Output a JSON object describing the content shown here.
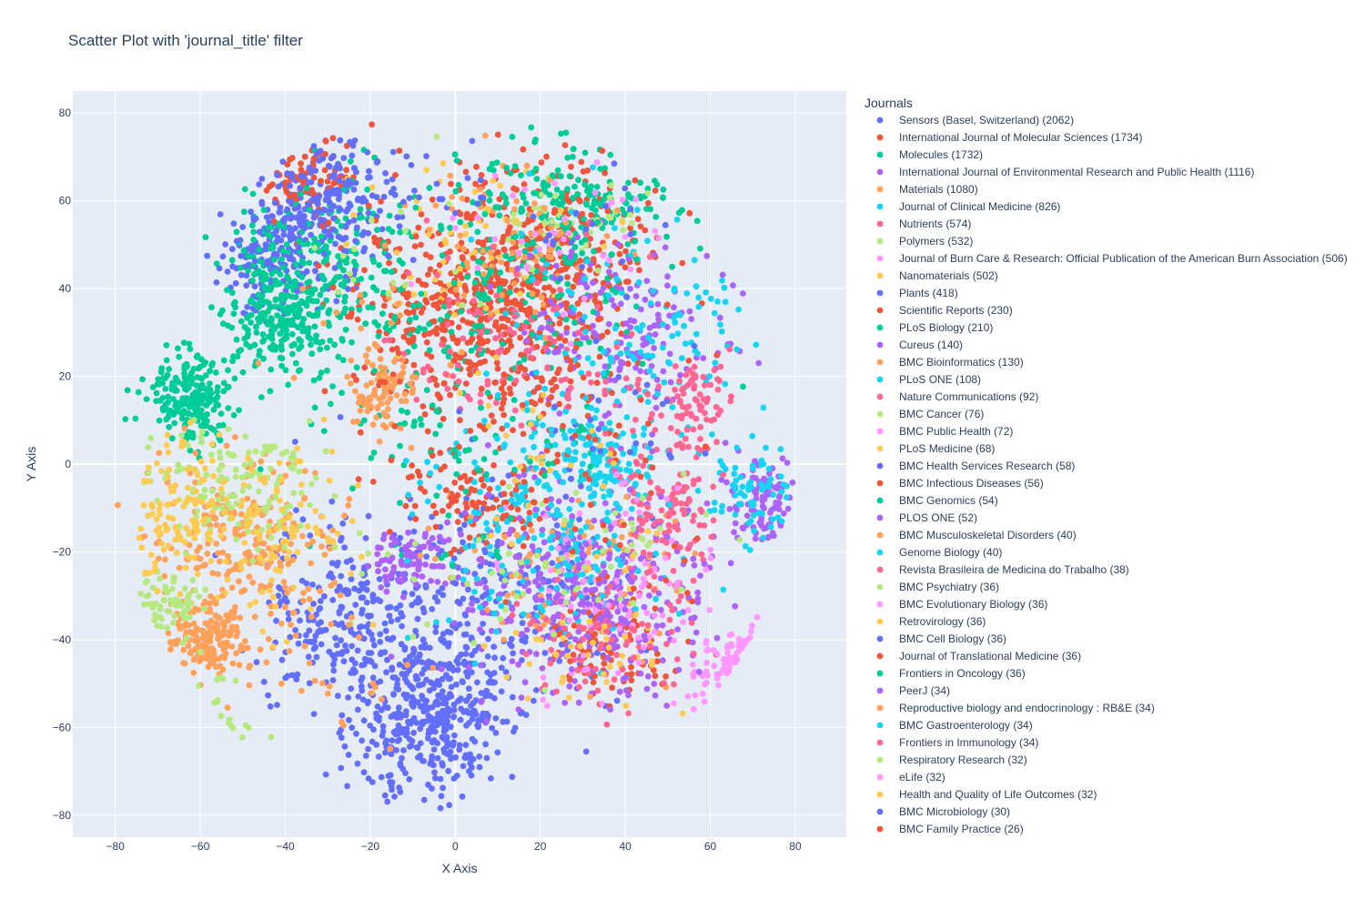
{
  "chart_data": {
    "type": "scatter",
    "title": "Scatter Plot with 'journal_title' filter",
    "xlabel": "X Axis",
    "ylabel": "Y Axis",
    "xlim": [
      -90,
      92
    ],
    "ylim": [
      -85,
      85
    ],
    "xticks": [
      -80,
      -60,
      -40,
      -20,
      0,
      20,
      40,
      60,
      80
    ],
    "yticks": [
      -80,
      -60,
      -40,
      -20,
      0,
      20,
      40,
      60,
      80
    ],
    "grid": true,
    "legend_title": "Journals",
    "legend_placement": "right",
    "series": [
      {
        "name": "Sensors (Basel, Switzerland) (2062)",
        "color": "#636efa",
        "clusters": [
          {
            "cx": -5,
            "cy": -55,
            "sx": 9,
            "sy": 9,
            "w": 4
          },
          {
            "cx": -25,
            "cy": -35,
            "sx": 10,
            "sy": 12,
            "w": 3
          },
          {
            "cx": -35,
            "cy": 55,
            "sx": 7,
            "sy": 8,
            "w": 2
          },
          {
            "cx": -45,
            "cy": 45,
            "sx": 5,
            "sy": 5,
            "w": 1
          },
          {
            "cx": 10,
            "cy": -30,
            "sx": 15,
            "sy": 12,
            "w": 2
          }
        ]
      },
      {
        "name": "International Journal of Molecular Sciences (1734)",
        "color": "#ef553b",
        "clusters": [
          {
            "cx": 5,
            "cy": 35,
            "sx": 14,
            "sy": 12,
            "w": 4
          },
          {
            "cx": 25,
            "cy": 50,
            "sx": 12,
            "sy": 10,
            "w": 2
          },
          {
            "cx": -35,
            "cy": 65,
            "sx": 5,
            "sy": 5,
            "w": 1
          },
          {
            "cx": 5,
            "cy": -10,
            "sx": 8,
            "sy": 5,
            "w": 1
          },
          {
            "cx": 35,
            "cy": -40,
            "sx": 8,
            "sy": 6,
            "w": 1
          }
        ]
      },
      {
        "name": "Molecules (1732)",
        "color": "#00cc96",
        "clusters": [
          {
            "cx": -62,
            "cy": 15,
            "sx": 5,
            "sy": 5,
            "w": 3
          },
          {
            "cx": -42,
            "cy": 35,
            "sx": 6,
            "sy": 6,
            "w": 3
          },
          {
            "cx": -30,
            "cy": 45,
            "sx": 12,
            "sy": 12,
            "w": 3
          },
          {
            "cx": 30,
            "cy": 60,
            "sx": 10,
            "sy": 6,
            "w": 2
          },
          {
            "cx": 0,
            "cy": 20,
            "sx": 20,
            "sy": 15,
            "w": 2
          }
        ]
      },
      {
        "name": "International Journal of Environmental Research and Public Health (1116)",
        "color": "#ab63fa",
        "clusters": [
          {
            "cx": 30,
            "cy": -30,
            "sx": 15,
            "sy": 12,
            "w": 3
          },
          {
            "cx": 72,
            "cy": -8,
            "sx": 4,
            "sy": 6,
            "w": 1
          },
          {
            "cx": -10,
            "cy": -22,
            "sx": 5,
            "sy": 4,
            "w": 1
          },
          {
            "cx": 40,
            "cy": 30,
            "sx": 12,
            "sy": 10,
            "w": 2
          }
        ]
      },
      {
        "name": "Materials (1080)",
        "color": "#ffa15a",
        "clusters": [
          {
            "cx": -58,
            "cy": -40,
            "sx": 4,
            "sy": 5,
            "w": 2
          },
          {
            "cx": -50,
            "cy": -20,
            "sx": 10,
            "sy": 12,
            "w": 3
          },
          {
            "cx": -17,
            "cy": 17,
            "sx": 4,
            "sy": 4,
            "w": 1
          },
          {
            "cx": 30,
            "cy": -25,
            "sx": 15,
            "sy": 10,
            "w": 1
          }
        ]
      },
      {
        "name": "Journal of Clinical Medicine (826)",
        "color": "#19d3f3",
        "clusters": [
          {
            "cx": 25,
            "cy": -10,
            "sx": 15,
            "sy": 15,
            "w": 3
          },
          {
            "cx": 35,
            "cy": 0,
            "sx": 5,
            "sy": 4,
            "w": 1
          },
          {
            "cx": 50,
            "cy": 30,
            "sx": 10,
            "sy": 10,
            "w": 1
          },
          {
            "cx": 70,
            "cy": -5,
            "sx": 5,
            "sy": 5,
            "w": 1
          }
        ]
      },
      {
        "name": "Nutrients (574)",
        "color": "#ff6692",
        "clusters": [
          {
            "cx": 50,
            "cy": -12,
            "sx": 6,
            "sy": 8,
            "w": 2
          },
          {
            "cx": 57,
            "cy": 15,
            "sx": 4,
            "sy": 5,
            "w": 1
          },
          {
            "cx": 30,
            "cy": -40,
            "sx": 10,
            "sy": 8,
            "w": 1
          },
          {
            "cx": 5,
            "cy": 25,
            "sx": 10,
            "sy": 8,
            "w": 1
          }
        ]
      },
      {
        "name": "Polymers (532)",
        "color": "#b6e880",
        "clusters": [
          {
            "cx": -52,
            "cy": -5,
            "sx": 10,
            "sy": 8,
            "w": 2
          },
          {
            "cx": -68,
            "cy": -32,
            "sx": 4,
            "sy": 4,
            "w": 1
          },
          {
            "cx": -55,
            "cy": -58,
            "sx": 4,
            "sy": 5,
            "w": 1
          },
          {
            "cx": 25,
            "cy": 55,
            "sx": 8,
            "sy": 5,
            "w": 1
          }
        ]
      },
      {
        "name": "Journal of Burn Care & Research: Official Publication of the American Burn Association (506)",
        "color": "#ff97ff",
        "clusters": [
          {
            "cx": 68,
            "cy": -47,
            "sx": 5,
            "sy": 5,
            "w": 4
          },
          {
            "cx": 30,
            "cy": -35,
            "sx": 12,
            "sy": 10,
            "w": 1
          }
        ]
      },
      {
        "name": "Nanomaterials (502)",
        "color": "#fecb52",
        "clusters": [
          {
            "cx": -65,
            "cy": -10,
            "sx": 6,
            "sy": 8,
            "w": 2
          },
          {
            "cx": -42,
            "cy": -15,
            "sx": 8,
            "sy": 10,
            "w": 2
          },
          {
            "cx": 0,
            "cy": 50,
            "sx": 15,
            "sy": 10,
            "w": 1
          }
        ]
      },
      {
        "name": "Plants (418)",
        "color": "#636efa",
        "clusters": [
          {
            "cx": -30,
            "cy": 60,
            "sx": 8,
            "sy": 8,
            "w": 2
          },
          {
            "cx": -10,
            "cy": -65,
            "sx": 8,
            "sy": 6,
            "w": 1
          }
        ]
      },
      {
        "name": "Scientific Reports (230)",
        "color": "#ef553b",
        "clusters": [
          {
            "cx": 10,
            "cy": 30,
            "sx": 20,
            "sy": 20,
            "w": 1
          }
        ]
      },
      {
        "name": "PLoS Biology (210)",
        "color": "#00cc96",
        "clusters": [
          {
            "cx": 20,
            "cy": 45,
            "sx": 15,
            "sy": 12,
            "w": 1
          }
        ]
      },
      {
        "name": "Cureus (140)",
        "color": "#ab63fa",
        "clusters": [
          {
            "cx": 35,
            "cy": -25,
            "sx": 10,
            "sy": 10,
            "w": 1
          }
        ]
      },
      {
        "name": "BMC Bioinformatics (130)",
        "color": "#ffa15a",
        "clusters": [
          {
            "cx": 15,
            "cy": 50,
            "sx": 12,
            "sy": 10,
            "w": 1
          }
        ]
      },
      {
        "name": "PLoS ONE (108)",
        "color": "#19d3f3",
        "clusters": [
          {
            "cx": 20,
            "cy": -15,
            "sx": 15,
            "sy": 10,
            "w": 1
          }
        ]
      },
      {
        "name": "Nature Communications (92)",
        "color": "#ff6692",
        "clusters": [
          {
            "cx": 30,
            "cy": 20,
            "sx": 12,
            "sy": 10,
            "w": 1
          }
        ]
      },
      {
        "name": "BMC Cancer (76)",
        "color": "#b6e880",
        "clusters": [
          {
            "cx": 10,
            "cy": -25,
            "sx": 15,
            "sy": 10,
            "w": 1
          }
        ]
      },
      {
        "name": "BMC Public Health (72)",
        "color": "#ff97ff",
        "clusters": [
          {
            "cx": 40,
            "cy": -25,
            "sx": 10,
            "sy": 10,
            "w": 1
          }
        ]
      },
      {
        "name": "PLoS Medicine (68)",
        "color": "#fecb52",
        "clusters": [
          {
            "cx": 30,
            "cy": -45,
            "sx": 10,
            "sy": 6,
            "w": 1
          }
        ]
      },
      {
        "name": "BMC Health Services Research (58)",
        "color": "#636efa",
        "clusters": [
          {
            "cx": 35,
            "cy": 10,
            "sx": 12,
            "sy": 12,
            "w": 1
          }
        ]
      },
      {
        "name": "BMC Infectious Diseases (56)",
        "color": "#ef553b",
        "clusters": [
          {
            "cx": 25,
            "cy": 5,
            "sx": 12,
            "sy": 12,
            "w": 1
          }
        ]
      },
      {
        "name": "BMC Genomics (54)",
        "color": "#00cc96",
        "clusters": [
          {
            "cx": 10,
            "cy": 55,
            "sx": 12,
            "sy": 10,
            "w": 1
          }
        ]
      },
      {
        "name": "PLOS ONE (52)",
        "color": "#ab63fa",
        "clusters": [
          {
            "cx": 45,
            "cy": -35,
            "sx": 10,
            "sy": 8,
            "w": 1
          }
        ]
      },
      {
        "name": "BMC Musculoskeletal Disorders (40)",
        "color": "#ffa15a",
        "clusters": [
          {
            "cx": -30,
            "cy": -45,
            "sx": 10,
            "sy": 8,
            "w": 1
          }
        ]
      },
      {
        "name": "Genome Biology (40)",
        "color": "#19d3f3",
        "clusters": [
          {
            "cx": 25,
            "cy": 40,
            "sx": 12,
            "sy": 10,
            "w": 1
          }
        ]
      },
      {
        "name": "Revista Brasileira de Medicina do Trabalho (38)",
        "color": "#ff6692",
        "clusters": [
          {
            "cx": 45,
            "cy": -40,
            "sx": 8,
            "sy": 6,
            "w": 1
          }
        ]
      },
      {
        "name": "BMC Psychiatry (36)",
        "color": "#b6e880",
        "clusters": [
          {
            "cx": 45,
            "cy": -20,
            "sx": 8,
            "sy": 8,
            "w": 1
          }
        ]
      },
      {
        "name": "BMC Evolutionary Biology (36)",
        "color": "#ff97ff",
        "clusters": [
          {
            "cx": 20,
            "cy": 50,
            "sx": 12,
            "sy": 10,
            "w": 1
          }
        ]
      },
      {
        "name": "Retrovirology (36)",
        "color": "#fecb52",
        "clusters": [
          {
            "cx": 20,
            "cy": 5,
            "sx": 10,
            "sy": 10,
            "w": 1
          }
        ]
      },
      {
        "name": "BMC Cell Biology (36)",
        "color": "#636efa",
        "clusters": [
          {
            "cx": 0,
            "cy": 60,
            "sx": 10,
            "sy": 8,
            "w": 1
          }
        ]
      },
      {
        "name": "Journal of Translational Medicine (36)",
        "color": "#ef553b",
        "clusters": [
          {
            "cx": 15,
            "cy": 15,
            "sx": 12,
            "sy": 10,
            "w": 1
          }
        ]
      },
      {
        "name": "Frontiers in Oncology (36)",
        "color": "#00cc96",
        "clusters": [
          {
            "cx": 10,
            "cy": -5,
            "sx": 12,
            "sy": 10,
            "w": 1
          }
        ]
      },
      {
        "name": "PeerJ (34)",
        "color": "#ab63fa",
        "clusters": [
          {
            "cx": 30,
            "cy": 35,
            "sx": 12,
            "sy": 10,
            "w": 1
          }
        ]
      },
      {
        "name": "Reproductive biology and endocrinology : RB&E (34)",
        "color": "#ffa15a",
        "clusters": [
          {
            "cx": -20,
            "cy": 25,
            "sx": 10,
            "sy": 10,
            "w": 1
          }
        ]
      },
      {
        "name": "BMC Gastroenterology (34)",
        "color": "#19d3f3",
        "clusters": [
          {
            "cx": 30,
            "cy": 25,
            "sx": 10,
            "sy": 10,
            "w": 1
          }
        ]
      },
      {
        "name": "Frontiers in Immunology (34)",
        "color": "#ff6692",
        "clusters": [
          {
            "cx": 10,
            "cy": 40,
            "sx": 12,
            "sy": 10,
            "w": 1
          }
        ]
      },
      {
        "name": "Respiratory Research (32)",
        "color": "#b6e880",
        "clusters": [
          {
            "cx": -10,
            "cy": 50,
            "sx": 10,
            "sy": 10,
            "w": 1
          }
        ]
      },
      {
        "name": "eLife (32)",
        "color": "#ff97ff",
        "clusters": [
          {
            "cx": 25,
            "cy": 60,
            "sx": 10,
            "sy": 6,
            "w": 1
          }
        ]
      },
      {
        "name": "Health and Quality of Life Outcomes (32)",
        "color": "#fecb52",
        "clusters": [
          {
            "cx": 35,
            "cy": -15,
            "sx": 10,
            "sy": 10,
            "w": 1
          }
        ]
      },
      {
        "name": "BMC Microbiology (30)",
        "color": "#636efa",
        "clusters": [
          {
            "cx": 30,
            "cy": 55,
            "sx": 10,
            "sy": 8,
            "w": 1
          }
        ]
      },
      {
        "name": "BMC Family Practice (26)",
        "color": "#ef553b",
        "clusters": [
          {
            "cx": 40,
            "cy": -20,
            "sx": 10,
            "sy": 10,
            "w": 1
          }
        ]
      }
    ]
  }
}
